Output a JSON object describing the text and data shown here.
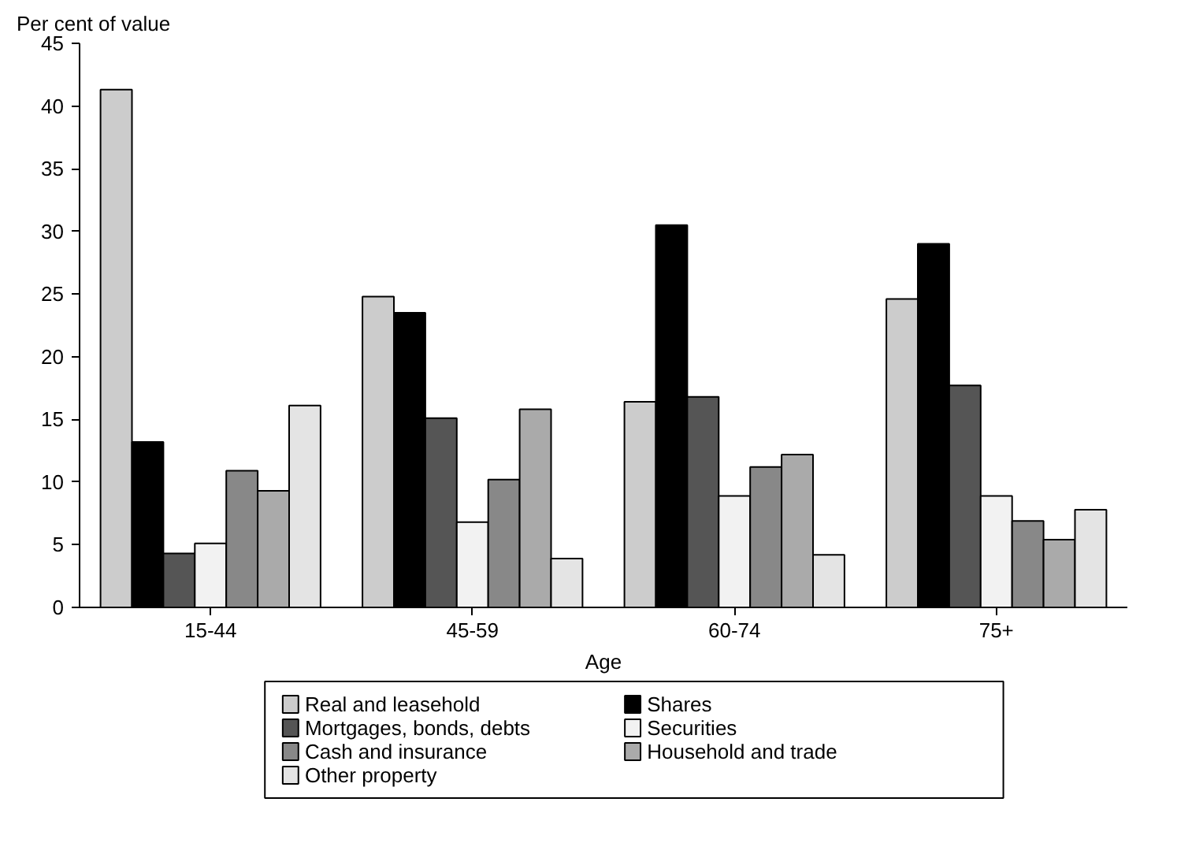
{
  "chart_data": {
    "type": "bar",
    "ylabel": "Per cent of value",
    "xlabel": "Age",
    "categories": [
      "15-44",
      "45-59",
      "60-74",
      "75+"
    ],
    "series": [
      {
        "name": "Real and leasehold",
        "color": "#cccccc",
        "values": [
          41.3,
          24.8,
          16.4,
          24.6
        ]
      },
      {
        "name": "Shares",
        "color": "#000000",
        "values": [
          13.2,
          23.5,
          30.5,
          29.0
        ]
      },
      {
        "name": "Mortgages, bonds, debts",
        "color": "#555555",
        "values": [
          4.3,
          15.1,
          16.8,
          17.7
        ]
      },
      {
        "name": "Securities",
        "color": "#f2f2f2",
        "values": [
          5.1,
          6.8,
          8.9,
          8.9
        ]
      },
      {
        "name": "Cash and insurance",
        "color": "#888888",
        "values": [
          10.9,
          10.2,
          11.2,
          6.9
        ]
      },
      {
        "name": "Household and trade",
        "color": "#aaaaaa",
        "values": [
          9.3,
          15.8,
          12.2,
          5.4
        ]
      },
      {
        "name": "Other property",
        "color": "#e4e4e4",
        "values": [
          16.1,
          3.9,
          4.2,
          7.8
        ]
      }
    ],
    "ylim": [
      0,
      45
    ],
    "yticks": [
      0,
      5,
      10,
      15,
      20,
      25,
      30,
      35,
      40,
      45
    ],
    "grid": false,
    "legend": "bottom"
  }
}
